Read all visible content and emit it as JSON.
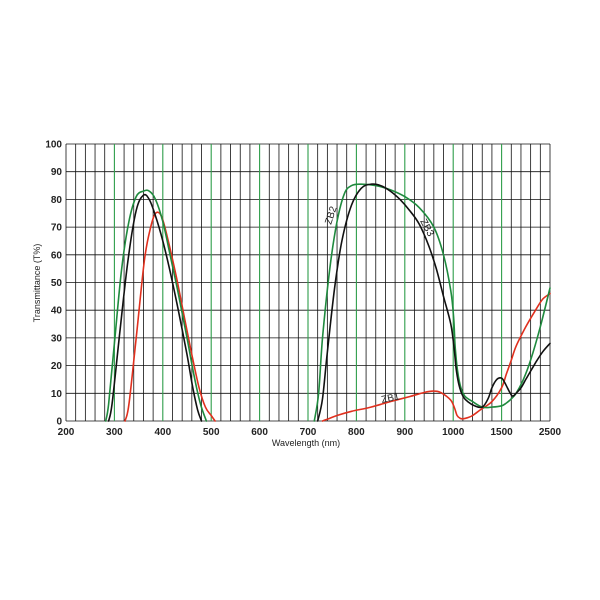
{
  "chart_data": {
    "type": "line",
    "title": "",
    "xlabel": "Wavelength (nm)",
    "ylabel": "Transmittance (T%)",
    "x_tick_labels": [
      "200",
      "300",
      "400",
      "500",
      "600",
      "700",
      "800",
      "900",
      "1000",
      "1500",
      "2500"
    ],
    "y_tick_labels": [
      "0",
      "10",
      "20",
      "30",
      "40",
      "50",
      "60",
      "70",
      "80",
      "90",
      "100"
    ],
    "ylim": [
      0,
      100
    ],
    "grid": true,
    "colors": {
      "black": "#111111",
      "green": "#1f8a3e",
      "red": "#e0301e",
      "grid": "#111111",
      "grid_accent": "#2e9d4a"
    },
    "series": [
      {
        "name": "ZB1",
        "color": "#e0301e",
        "segments": [
          [
            [
              322,
              0
            ],
            [
              330,
              6
            ],
            [
              345,
              30
            ],
            [
              362,
              58
            ],
            [
              375,
              70
            ],
            [
              385,
              75
            ],
            [
              397,
              74
            ],
            [
              410,
              66
            ],
            [
              428,
              52
            ],
            [
              445,
              37
            ],
            [
              460,
              24
            ],
            [
              475,
              12
            ],
            [
              488,
              5
            ],
            [
              500,
              2
            ],
            [
              508,
              0
            ]
          ],
          [
            [
              730,
              0
            ],
            [
              745,
              1
            ],
            [
              760,
              2
            ],
            [
              790,
              3.5
            ],
            [
              830,
              5
            ],
            [
              870,
              7
            ],
            [
              910,
              8.8
            ],
            [
              940,
              10.3
            ],
            [
              960,
              10.8
            ],
            [
              975,
              10.2
            ],
            [
              995,
              7.5
            ],
            [
              1015,
              4.5
            ],
            [
              1040,
              2
            ],
            [
              1070,
              1
            ],
            [
              1100,
              0.8
            ],
            [
              1150,
              1.2
            ],
            [
              1200,
              2
            ],
            [
              1280,
              4
            ],
            [
              1400,
              7
            ],
            [
              1500,
              12
            ],
            [
              1600,
              17
            ],
            [
              1700,
              22
            ],
            [
              1800,
              27
            ],
            [
              2000,
              34
            ],
            [
              2200,
              40
            ],
            [
              2350,
              44
            ],
            [
              2500,
              46
            ]
          ]
        ]
      },
      {
        "name": "ZB2",
        "color": "#1f8a3e",
        "segments": [
          [
            [
              282,
              0
            ],
            [
              288,
              6
            ],
            [
              300,
              28
            ],
            [
              315,
              55
            ],
            [
              330,
              72
            ],
            [
              345,
              81
            ],
            [
              360,
              83
            ],
            [
              372,
              83
            ],
            [
              385,
              80
            ],
            [
              400,
              72
            ],
            [
              415,
              60
            ],
            [
              432,
              46
            ],
            [
              450,
              30
            ],
            [
              465,
              16
            ],
            [
              478,
              6
            ],
            [
              490,
              0
            ]
          ],
          [
            [
              713,
              0
            ],
            [
              722,
              10
            ],
            [
              730,
              30
            ],
            [
              745,
              55
            ],
            [
              760,
              72
            ],
            [
              775,
              82
            ],
            [
              790,
              85
            ],
            [
              810,
              85.5
            ],
            [
              840,
              85
            ],
            [
              870,
              83.5
            ],
            [
              900,
              81
            ],
            [
              930,
              77
            ],
            [
              960,
              70
            ],
            [
              980,
              60
            ],
            [
              995,
              47
            ],
            [
              1005,
              37
            ],
            [
              1020,
              27
            ],
            [
              1045,
              18
            ],
            [
              1080,
              12
            ],
            [
              1120,
              9
            ],
            [
              1200,
              7
            ],
            [
              1300,
              5
            ],
            [
              1400,
              5
            ],
            [
              1500,
              5.5
            ],
            [
              1600,
              6.5
            ],
            [
              1700,
              8
            ],
            [
              1800,
              10
            ],
            [
              1950,
              15
            ],
            [
              2100,
              22
            ],
            [
              2300,
              34
            ],
            [
              2500,
              48
            ]
          ]
        ]
      },
      {
        "name": "ZB3",
        "color": "#111111",
        "segments": [
          [
            [
              288,
              0
            ],
            [
              295,
              6
            ],
            [
              310,
              30
            ],
            [
              328,
              58
            ],
            [
              345,
              76
            ],
            [
              360,
              81.5
            ],
            [
              372,
              80
            ],
            [
              385,
              74
            ],
            [
              400,
              65
            ],
            [
              415,
              54
            ],
            [
              432,
              40
            ],
            [
              450,
              24
            ],
            [
              462,
              12
            ],
            [
              472,
              4
            ],
            [
              480,
              0
            ]
          ],
          [
            [
              720,
              0
            ],
            [
              730,
              8
            ],
            [
              740,
              25
            ],
            [
              755,
              48
            ],
            [
              770,
              65
            ],
            [
              790,
              78
            ],
            [
              810,
              84
            ],
            [
              830,
              85.5
            ],
            [
              850,
              85
            ],
            [
              870,
              83
            ],
            [
              890,
              80
            ],
            [
              910,
              76
            ],
            [
              930,
              71
            ],
            [
              950,
              63
            ],
            [
              965,
              55
            ],
            [
              980,
              45
            ],
            [
              995,
              35
            ],
            [
              1010,
              26
            ],
            [
              1030,
              19
            ],
            [
              1060,
              13
            ],
            [
              1100,
              9
            ],
            [
              1150,
              7
            ],
            [
              1220,
              5.5
            ],
            [
              1300,
              5
            ],
            [
              1360,
              8
            ],
            [
              1400,
              12
            ],
            [
              1450,
              15
            ],
            [
              1500,
              15.5
            ],
            [
              1560,
              14
            ],
            [
              1620,
              12
            ],
            [
              1680,
              10
            ],
            [
              1730,
              9
            ],
            [
              1800,
              10
            ],
            [
              1900,
              12
            ],
            [
              2000,
              15
            ],
            [
              2100,
              18
            ],
            [
              2200,
              21
            ],
            [
              2350,
              25
            ],
            [
              2500,
              28
            ]
          ]
        ]
      }
    ]
  }
}
